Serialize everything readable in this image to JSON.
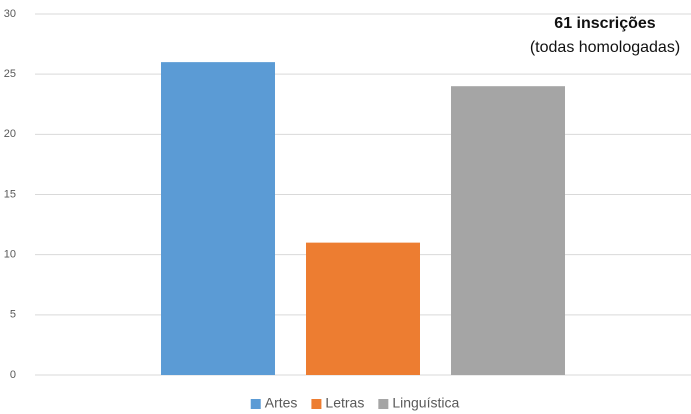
{
  "chart_data": {
    "type": "bar",
    "annotations": [
      "61 inscrições",
      "(todas homologadas)"
    ],
    "categories": [
      null
    ],
    "series": [
      {
        "name": "Artes",
        "color": "#5b9bd5",
        "values": [
          26
        ]
      },
      {
        "name": "Letras",
        "color": "#ed7d31",
        "values": [
          11
        ]
      },
      {
        "name": "Linguística",
        "color": "#a5a5a5",
        "values": [
          24
        ]
      }
    ],
    "ylim": [
      0,
      30
    ],
    "yticks": [
      0,
      5,
      10,
      15,
      20,
      25,
      30
    ],
    "grid": true,
    "legend": "bottom"
  }
}
